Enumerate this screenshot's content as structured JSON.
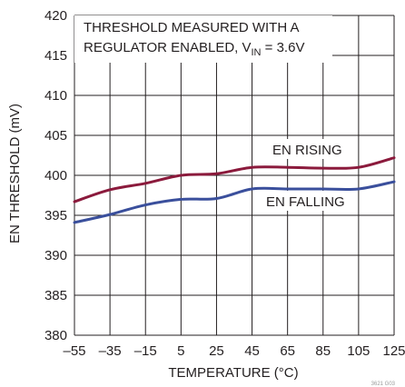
{
  "chart_data": {
    "type": "line",
    "xlabel": "TEMPERATURE (°C)",
    "ylabel": "EN THRESHOLD (mV)",
    "xlim": [
      -55,
      125
    ],
    "ylim": [
      380,
      420
    ],
    "x_ticks": [
      -55,
      -35,
      -15,
      5,
      25,
      45,
      65,
      85,
      105,
      125
    ],
    "x_tick_labels": [
      "–55",
      "–35",
      "–15",
      "5",
      "25",
      "45",
      "65",
      "85",
      "105",
      "125"
    ],
    "y_ticks": [
      380,
      385,
      390,
      395,
      400,
      405,
      410,
      415,
      420
    ],
    "grid": true,
    "annotation": {
      "line1": "THRESHOLD MEASURED WITH A",
      "line2_prefix": "REGULATOR ENABLED, V",
      "line2_sub": "IN",
      "line2_suffix": " = 3.6V"
    },
    "series": [
      {
        "name": "EN RISING",
        "color": "#8b1a3c",
        "x": [
          -55,
          -35,
          -15,
          5,
          25,
          45,
          65,
          85,
          105,
          125
        ],
        "values": [
          396.7,
          398.2,
          399.0,
          400.0,
          400.2,
          401.0,
          401.0,
          400.9,
          401.0,
          402.2
        ]
      },
      {
        "name": "EN FALLING",
        "color": "#3a4f9c",
        "x": [
          -55,
          -35,
          -15,
          5,
          25,
          45,
          65,
          85,
          105,
          125
        ],
        "values": [
          394.1,
          395.1,
          396.3,
          397.0,
          397.1,
          398.3,
          398.3,
          398.3,
          398.3,
          399.2
        ]
      }
    ]
  },
  "figure_id": "3621 G03"
}
